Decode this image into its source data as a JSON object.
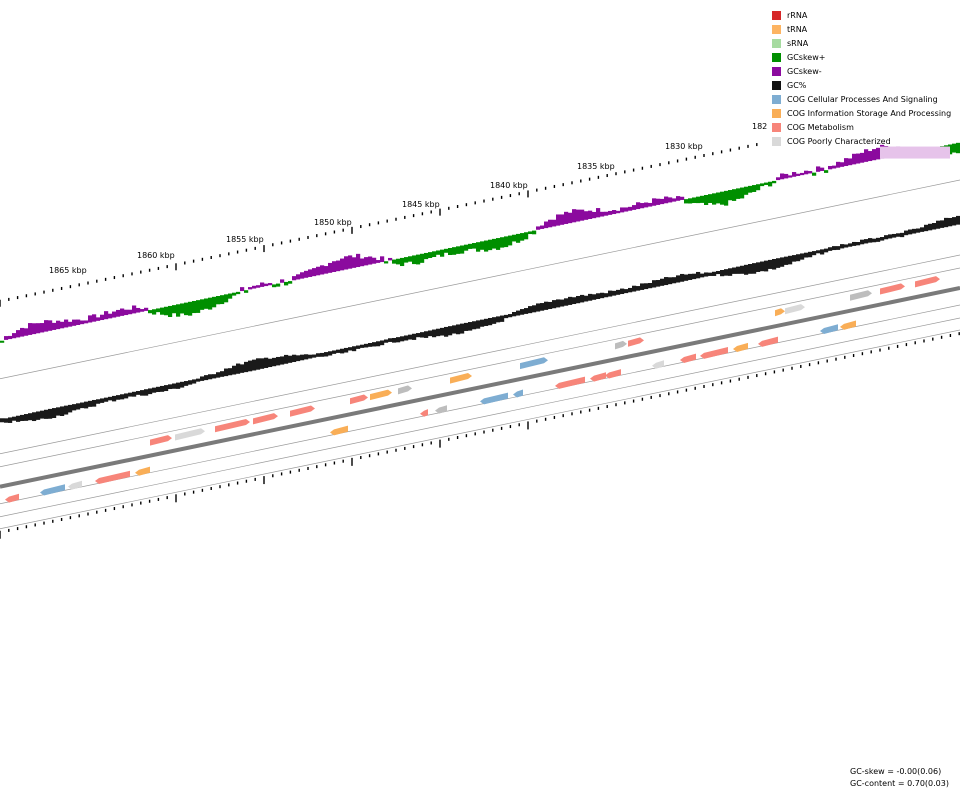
{
  "legend": [
    {
      "label": "rRNA",
      "color": "#d62728"
    },
    {
      "label": "tRNA",
      "color": "#fdb462"
    },
    {
      "label": "sRNA",
      "color": "#a6dba0"
    },
    {
      "label": "GCskew+",
      "color": "#008f00"
    },
    {
      "label": "GCskew-",
      "color": "#8b0a9e"
    },
    {
      "label": "GC%",
      "color": "#111111"
    },
    {
      "label": "COG Cellular Processes And Signaling",
      "color": "#7eadd2"
    },
    {
      "label": "COG Information Storage And Processing",
      "color": "#f9ae57"
    },
    {
      "label": "COG Metabolism",
      "color": "#f7857a"
    },
    {
      "label": "COG Poorly Characterized",
      "color": "#d9d9d9"
    }
  ],
  "axis": {
    "ticks": [
      {
        "kbp": 1830,
        "label": "1830 kbp"
      },
      {
        "kbp": 1835,
        "label": "1835 kbp"
      },
      {
        "kbp": 1840,
        "label": "1840 kbp"
      },
      {
        "kbp": 1845,
        "label": "1845 kbp"
      },
      {
        "kbp": 1850,
        "label": "1850 kbp"
      },
      {
        "kbp": 1855,
        "label": "1855 kbp"
      },
      {
        "kbp": 1860,
        "label": "1860 kbp"
      },
      {
        "kbp": 1865,
        "label": "1865 kbp"
      }
    ],
    "partial_label": "182"
  },
  "stats": {
    "gc_skew": "GC-skew = -0.00(0.06)",
    "gc_content": "GC-content = 0.70(0.03)"
  }
}
